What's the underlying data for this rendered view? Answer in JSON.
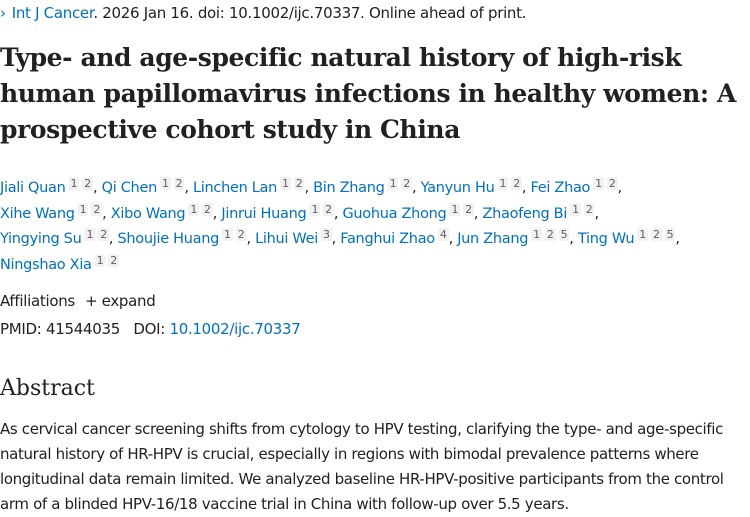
{
  "citation": {
    "chevron_icon": "chevron-right",
    "journal": "Int J Cancer",
    "rest": ". 2026 Jan 16. doi: 10.1002/ijc.70337. Online ahead of print."
  },
  "title": "Type- and age-specific natural history of high-risk human papillomavirus infections in healthy women: A prospective cohort study in China",
  "authors": [
    {
      "name": "Jiali Quan",
      "affs": "1 2"
    },
    {
      "name": "Qi Chen",
      "affs": "1 2"
    },
    {
      "name": "Linchen Lan",
      "affs": "1 2"
    },
    {
      "name": "Bin Zhang",
      "affs": "1 2"
    },
    {
      "name": "Yanyun Hu",
      "affs": "1 2"
    },
    {
      "name": "Fei Zhao",
      "affs": "1 2"
    },
    {
      "name": "Xihe Wang",
      "affs": "1 2"
    },
    {
      "name": "Xibo Wang",
      "affs": "1 2"
    },
    {
      "name": "Jinrui Huang",
      "affs": "1 2"
    },
    {
      "name": "Guohua Zhong",
      "affs": "1 2"
    },
    {
      "name": "Zhaofeng Bi",
      "affs": "1 2"
    },
    {
      "name": "Yingying Su",
      "affs": "1 2"
    },
    {
      "name": "Shoujie Huang",
      "affs": "1 2"
    },
    {
      "name": "Lihui Wei",
      "affs": "3"
    },
    {
      "name": "Fanghui Zhao",
      "affs": "4"
    },
    {
      "name": "Jun Zhang",
      "affs": "1 2 5"
    },
    {
      "name": "Ting Wu",
      "affs": "1 2 5"
    },
    {
      "name": "Ningshao Xia",
      "affs": "1 2"
    }
  ],
  "affiliations": {
    "label": "Affiliations",
    "expand": "+ expand"
  },
  "ids": {
    "pmid_label": "PMID:",
    "pmid": "41544035",
    "doi_label": "DOI:",
    "doi": "10.1002/ijc.70337"
  },
  "abstract": {
    "heading": "Abstract",
    "text": "As cervical cancer screening shifts from cytology to HPV testing, clarifying the type- and age-specific natural history of HR-HPV is crucial, especially in regions with bimodal prevalence patterns where longitudinal data remain limited. We analyzed baseline HR-HPV-positive participants from the control arm of a blinded HPV-16/18 vaccine trial in China with follow-up over 5.5 years."
  }
}
